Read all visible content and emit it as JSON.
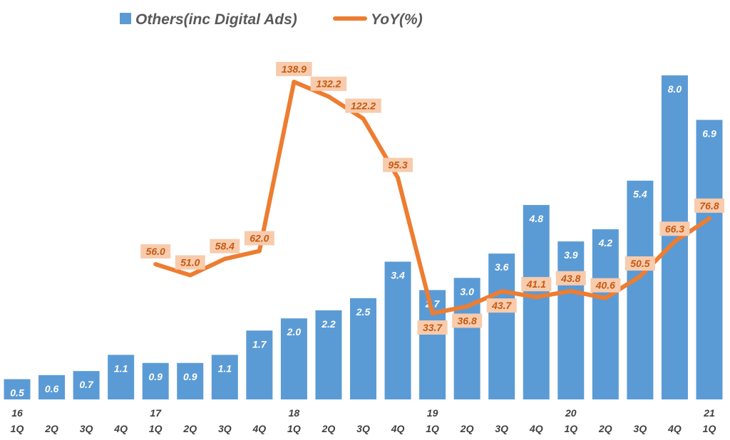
{
  "chart_data": {
    "type": "bar+line",
    "title": "",
    "legend": {
      "placement": "top",
      "entries": [
        "Others(inc Digital Ads)",
        "YoY(%)"
      ]
    },
    "colors": {
      "bar": "#5b9bd5",
      "line": "#ed7d31",
      "label_bg": "#f8cbad",
      "label_text": "#c55a11",
      "axis_text": "#404040"
    },
    "categories": [
      {
        "year": "16",
        "q": "1Q"
      },
      {
        "year": "",
        "q": "2Q"
      },
      {
        "year": "",
        "q": "3Q"
      },
      {
        "year": "",
        "q": "4Q"
      },
      {
        "year": "17",
        "q": "1Q"
      },
      {
        "year": "",
        "q": "2Q"
      },
      {
        "year": "",
        "q": "3Q"
      },
      {
        "year": "",
        "q": "4Q"
      },
      {
        "year": "18",
        "q": "1Q"
      },
      {
        "year": "",
        "q": "2Q"
      },
      {
        "year": "",
        "q": "3Q"
      },
      {
        "year": "",
        "q": "4Q"
      },
      {
        "year": "19",
        "q": "1Q"
      },
      {
        "year": "",
        "q": "2Q"
      },
      {
        "year": "",
        "q": "3Q"
      },
      {
        "year": "",
        "q": "4Q"
      },
      {
        "year": "20",
        "q": "1Q"
      },
      {
        "year": "",
        "q": "2Q"
      },
      {
        "year": "",
        "q": "3Q"
      },
      {
        "year": "",
        "q": "4Q"
      },
      {
        "year": "21",
        "q": "1Q"
      }
    ],
    "series": [
      {
        "name": "Others(inc Digital Ads)",
        "type": "bar",
        "values": [
          0.5,
          0.6,
          0.7,
          1.1,
          0.9,
          0.9,
          1.1,
          1.7,
          2.0,
          2.2,
          2.5,
          3.4,
          2.7,
          3.0,
          3.6,
          4.8,
          3.9,
          4.2,
          5.4,
          8.0,
          6.9
        ],
        "labels": [
          "0.5",
          "0.6",
          "0.7",
          "1.1",
          "0.9",
          "0.9",
          "1.1",
          "1.7",
          "2.0",
          "2.2",
          "2.5",
          "3.4",
          "2.7",
          "3.0",
          "3.6",
          "4.8",
          "3.9",
          "4.2",
          "5.4",
          "8.0",
          "6.9"
        ]
      },
      {
        "name": "YoY(%)",
        "type": "line",
        "values": [
          null,
          null,
          null,
          null,
          56.0,
          51.0,
          58.4,
          62.0,
          138.9,
          132.2,
          122.2,
          95.3,
          33.7,
          36.8,
          43.7,
          41.1,
          43.8,
          40.6,
          50.5,
          66.3,
          76.8
        ],
        "labels": [
          "",
          "",
          "",
          "",
          "56.0",
          "51.0",
          "58.4",
          "62.0",
          "138.9",
          "132.2",
          "122.2",
          "95.3",
          "33.7",
          "36.8",
          "43.7",
          "41.1",
          "43.8",
          "40.6",
          "50.5",
          "66.3",
          "76.8"
        ]
      }
    ],
    "ylim_bar": [
      0,
      8.0
    ],
    "ylim_line": [
      0,
      140
    ],
    "grid": false
  }
}
